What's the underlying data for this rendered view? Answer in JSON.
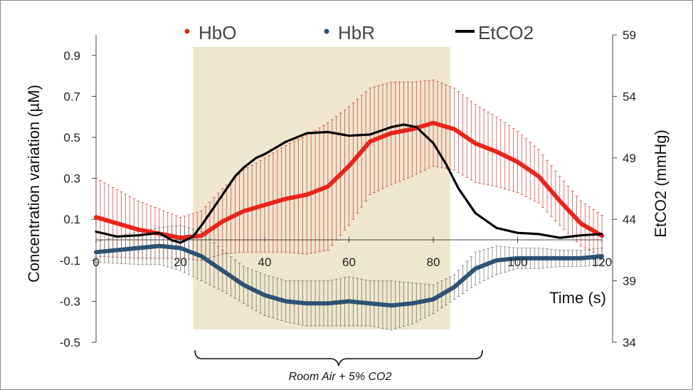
{
  "chart_data": {
    "type": "line",
    "x_unit": "s",
    "xlabel": "Time (s)",
    "ylabel_left": "Concentration variation  (µM)",
    "ylabel_right": "EtCO2 (mmHg)",
    "xlim": [
      0,
      120
    ],
    "ylim_left": [
      -0.5,
      1.0
    ],
    "ylim_right": [
      34,
      59
    ],
    "x_ticks": [
      "0",
      "20",
      "40",
      "60",
      "80",
      "100",
      "120"
    ],
    "y_ticks_left": [
      "0.9",
      "0.7",
      "0.5",
      "0.3",
      "0.1",
      "-0.1",
      "-0.3",
      "-0.5"
    ],
    "y_ticks_right": [
      "59",
      "54",
      "49",
      "44",
      "39",
      "34"
    ],
    "legend_position": "top",
    "shaded_interval": [
      23,
      84
    ],
    "shaded_label": "Room Air + 5% CO2",
    "series": [
      {
        "name": "HbO",
        "axis": "left",
        "color": "#e8251c",
        "marker": "dot",
        "x": [
          0,
          10,
          20,
          25,
          30,
          35,
          40,
          45,
          50,
          55,
          60,
          65,
          70,
          75,
          80,
          85,
          90,
          95,
          100,
          105,
          110,
          115,
          120
        ],
        "y": [
          0.11,
          0.05,
          0.01,
          0.02,
          0.09,
          0.14,
          0.17,
          0.2,
          0.22,
          0.26,
          0.36,
          0.48,
          0.52,
          0.54,
          0.57,
          0.54,
          0.47,
          0.43,
          0.38,
          0.31,
          0.19,
          0.08,
          0.02
        ],
        "y_err": [
          0.19,
          0.14,
          0.1,
          0.12,
          0.16,
          0.2,
          0.23,
          0.26,
          0.29,
          0.31,
          0.29,
          0.26,
          0.25,
          0.23,
          0.21,
          0.2,
          0.19,
          0.17,
          0.15,
          0.13,
          0.12,
          0.11,
          0.1
        ]
      },
      {
        "name": "HbR",
        "axis": "left",
        "color": "#2f5272",
        "marker": "dot",
        "x": [
          0,
          10,
          15,
          20,
          25,
          30,
          35,
          40,
          45,
          50,
          55,
          60,
          65,
          70,
          75,
          80,
          85,
          90,
          95,
          100,
          105,
          110,
          115,
          120
        ],
        "y": [
          -0.06,
          -0.04,
          -0.03,
          -0.04,
          -0.08,
          -0.15,
          -0.22,
          -0.27,
          -0.3,
          -0.31,
          -0.31,
          -0.3,
          -0.31,
          -0.32,
          -0.31,
          -0.29,
          -0.23,
          -0.14,
          -0.1,
          -0.09,
          -0.09,
          -0.09,
          -0.09,
          -0.08
        ],
        "y_err": [
          0.05,
          0.08,
          0.09,
          0.11,
          0.12,
          0.1,
          0.09,
          0.1,
          0.1,
          0.11,
          0.11,
          0.12,
          0.11,
          0.12,
          0.1,
          0.07,
          0.06,
          0.08,
          0.07,
          0.05,
          0.05,
          0.04,
          0.04,
          0.04
        ]
      },
      {
        "name": "EtCO2",
        "axis": "right",
        "color": "#000000",
        "marker": "line",
        "x": [
          0,
          5,
          10,
          15,
          18,
          20,
          23,
          25,
          27,
          30,
          33,
          35,
          38,
          40,
          45,
          50,
          55,
          60,
          65,
          70,
          73,
          76,
          80,
          83,
          86,
          90,
          95,
          100,
          105,
          110,
          115,
          120
        ],
        "y": [
          43.0,
          42.6,
          42.7,
          42.9,
          42.3,
          42.1,
          42.6,
          43.5,
          44.5,
          46.0,
          47.5,
          48.2,
          49.0,
          49.3,
          50.3,
          51.0,
          51.1,
          50.8,
          50.9,
          51.5,
          51.7,
          51.5,
          50.2,
          48.5,
          46.5,
          44.5,
          43.3,
          42.9,
          42.8,
          42.5,
          42.7,
          42.8
        ]
      }
    ]
  }
}
